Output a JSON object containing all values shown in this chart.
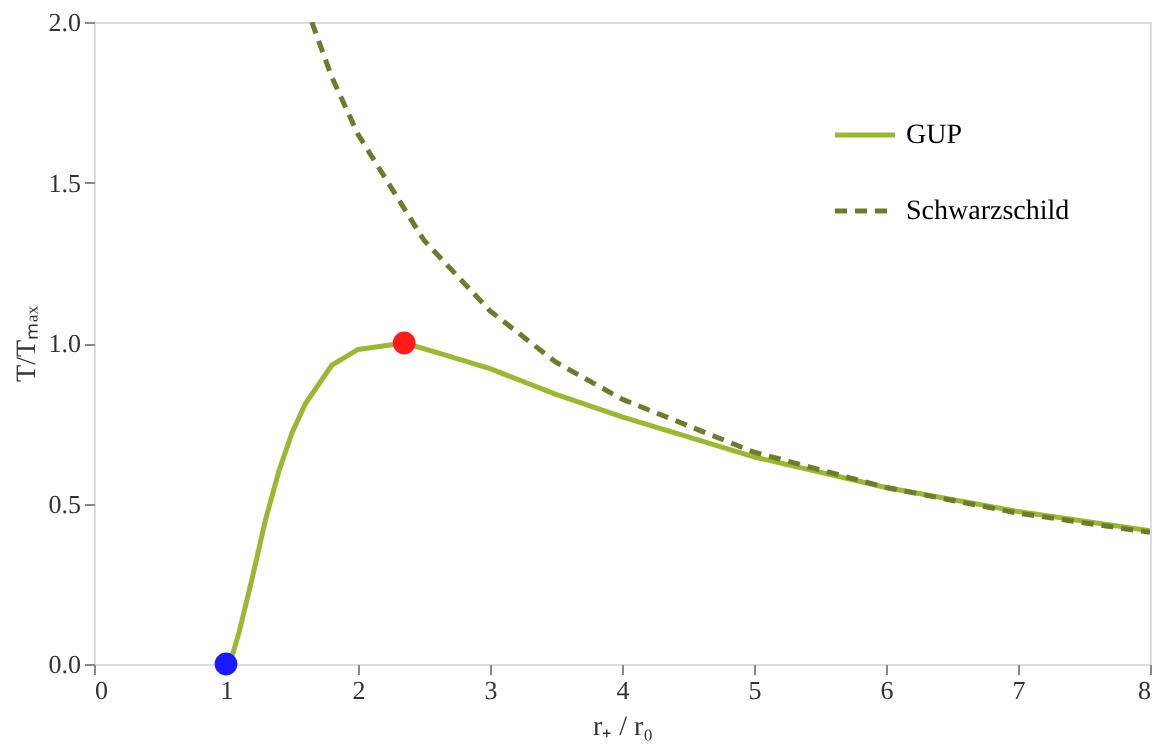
{
  "chart_data": {
    "type": "line",
    "xlabel": "r₊ / r₀",
    "ylabel": "T/Tₘₐₓ",
    "xlim": [
      0,
      8
    ],
    "xticks": [
      0,
      1,
      2,
      3,
      4,
      5,
      6,
      7,
      8
    ],
    "ylim": [
      0,
      2
    ],
    "yticks": [
      {
        "value": 0,
        "label": "0.0"
      },
      {
        "value": 0.5,
        "label": "0.5"
      },
      {
        "value": 1,
        "label": "1.0"
      },
      {
        "value": 1.5,
        "label": "1.5"
      },
      {
        "value": 2,
        "label": "2.0"
      }
    ],
    "grid": false,
    "legend": "top right",
    "series": [
      {
        "name": "GUP",
        "line_style": "solid",
        "color": "#9ab832",
        "x": [
          1,
          1.05,
          1.1,
          1.2,
          1.3,
          1.4,
          1.5,
          1.6,
          1.8,
          2.0,
          2.35,
          2.6,
          3,
          3.5,
          4,
          5,
          6,
          7,
          8
        ],
        "values": [
          0,
          0.03,
          0.1,
          0.27,
          0.45,
          0.6,
          0.72,
          0.81,
          0.93,
          0.98,
          1.0,
          0.97,
          0.92,
          0.84,
          0.77,
          0.645,
          0.55,
          0.475,
          0.415
        ]
      },
      {
        "name": "Schwarzschild",
        "line_style": "dashed",
        "color": "#6b7d2a",
        "x": [
          1.65,
          1.8,
          2,
          2.5,
          3,
          3.5,
          4,
          5,
          6,
          7,
          8
        ],
        "values": [
          2.0,
          1.83,
          1.65,
          1.32,
          1.1,
          0.94,
          0.825,
          0.66,
          0.55,
          0.47,
          0.41
        ]
      },
      {
        "type": "scatter",
        "marker": "circle",
        "colors": [
          "#1a1aff",
          "#ff1a1a"
        ],
        "x": [
          1,
          2.35
        ],
        "values": [
          0,
          1.0
        ]
      }
    ]
  }
}
